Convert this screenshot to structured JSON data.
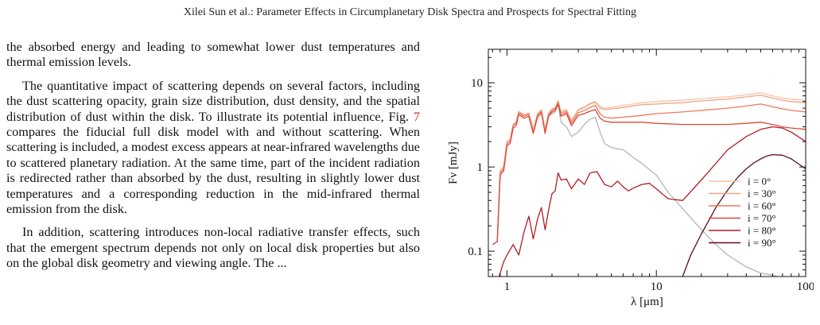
{
  "header": {
    "running_title": "Xilei Sun et al.: Parameter Effects in Circumplanetary Disk Spectra and Prospects for Spectral Fitting"
  },
  "body_text": {
    "para1": "the absorbed energy and leading to somewhat lower dust temperatures and thermal emission levels.",
    "para2_before_ref": "The quantitative impact of scattering depends on several factors, including the dust scattering opacity, grain size distribution, dust density, and the spatial distribution of dust within the disk. To illustrate its potential influence, Fig. ",
    "para2_ref": "7",
    "para2_after_ref": " compares the fiducial full disk model with and without scattering. When scattering is included, a modest excess appears at near-infrared wavelengths due to scattered planetary radiation. At the same time, part of the incident radiation is redirected rather than absorbed by the dust, resulting in slightly lower dust temperatures and a corresponding reduction in the mid-infrared thermal emission from the disk.",
    "para3": "In addition, scattering introduces non-local radiative transfer effects, such that the emergent spectrum depends not only on local disk properties but also on the global disk geometry and viewing angle. The ..."
  },
  "chart_data": {
    "type": "line",
    "xlabel": "λ [μm]",
    "ylabel": "Fν [mJy]",
    "xscale": "log",
    "yscale": "log",
    "xlim": [
      0.75,
      100
    ],
    "ylim": [
      0.05,
      25
    ],
    "xticks": [
      1,
      10,
      100
    ],
    "xtick_labels": [
      "1",
      "10",
      "100"
    ],
    "yticks": [
      0.1,
      1,
      10
    ],
    "ytick_labels": [
      "0.1",
      "1",
      "10"
    ],
    "legend_position": "lower right",
    "grid": false,
    "series": [
      {
        "name": "i = 0°",
        "color": "#f7c4a8",
        "x": [
          0.8,
          0.86,
          0.9,
          0.95,
          1.0,
          1.05,
          1.1,
          1.15,
          1.2,
          1.3,
          1.4,
          1.5,
          1.6,
          1.7,
          1.8,
          1.9,
          2.0,
          2.1,
          2.2,
          2.3,
          2.5,
          2.7,
          3.0,
          3.3,
          3.6,
          3.9,
          4.2,
          4.5,
          5,
          6,
          7,
          8,
          10,
          15,
          20,
          30,
          40,
          50,
          60,
          70,
          80,
          100
        ],
        "y": [
          0.12,
          0.13,
          0.9,
          1.0,
          2.0,
          2.1,
          3.2,
          3.4,
          4.6,
          4.2,
          4.4,
          2.8,
          4.3,
          4.8,
          2.8,
          4.4,
          4.9,
          5.1,
          6.2,
          4.5,
          4.8,
          3.6,
          4.8,
          5.2,
          5.7,
          6.0,
          5.2,
          5.0,
          5.1,
          5.4,
          5.6,
          5.8,
          6.0,
          6.2,
          6.5,
          6.8,
          7.2,
          7.6,
          7.0,
          6.6,
          6.4,
          6.2
        ]
      },
      {
        "name": "i = 30°",
        "color": "#f2a388",
        "x": [
          0.8,
          0.86,
          0.9,
          0.95,
          1.0,
          1.05,
          1.1,
          1.15,
          1.2,
          1.3,
          1.4,
          1.5,
          1.6,
          1.7,
          1.8,
          1.9,
          2.0,
          2.1,
          2.2,
          2.3,
          2.5,
          2.7,
          3.0,
          3.3,
          3.6,
          3.9,
          4.2,
          4.5,
          5,
          6,
          7,
          8,
          10,
          15,
          20,
          30,
          40,
          50,
          60,
          70,
          80,
          100
        ],
        "y": [
          0.12,
          0.13,
          0.9,
          1.0,
          2.0,
          2.1,
          3.2,
          3.4,
          4.5,
          4.1,
          4.3,
          2.7,
          4.2,
          4.7,
          2.7,
          4.3,
          4.8,
          5.0,
          6.0,
          4.4,
          4.7,
          3.5,
          4.7,
          5.1,
          5.6,
          5.9,
          5.0,
          4.8,
          4.9,
          5.1,
          5.3,
          5.5,
          5.6,
          5.8,
          6.1,
          6.4,
          6.8,
          7.1,
          6.6,
          6.2,
          6.0,
          5.8
        ]
      },
      {
        "name": "i = 60°",
        "color": "#ea7a5c",
        "x": [
          0.8,
          0.86,
          0.9,
          0.95,
          1.0,
          1.05,
          1.1,
          1.15,
          1.2,
          1.3,
          1.4,
          1.5,
          1.6,
          1.7,
          1.8,
          1.9,
          2.0,
          2.1,
          2.2,
          2.3,
          2.5,
          2.7,
          3.0,
          3.3,
          3.6,
          3.9,
          4.2,
          4.5,
          5,
          6,
          7,
          8,
          10,
          15,
          20,
          30,
          40,
          50,
          60,
          70,
          80,
          100
        ],
        "y": [
          0.12,
          0.13,
          0.85,
          0.95,
          1.9,
          2.0,
          3.1,
          3.3,
          4.4,
          4.0,
          4.2,
          2.6,
          4.1,
          4.6,
          2.6,
          4.2,
          4.7,
          4.9,
          5.8,
          4.2,
          4.5,
          3.3,
          4.4,
          4.7,
          5.1,
          5.4,
          4.3,
          3.9,
          3.8,
          3.9,
          4.0,
          4.1,
          4.3,
          4.5,
          4.7,
          5.0,
          5.3,
          5.6,
          5.2,
          4.9,
          4.7,
          4.5
        ]
      },
      {
        "name": "i = 70°",
        "color": "#dc4a3a",
        "x": [
          0.8,
          0.86,
          0.9,
          0.95,
          1.0,
          1.05,
          1.1,
          1.15,
          1.2,
          1.3,
          1.4,
          1.5,
          1.6,
          1.7,
          1.8,
          1.9,
          2.0,
          2.1,
          2.2,
          2.3,
          2.5,
          2.7,
          3.0,
          3.3,
          3.6,
          3.9,
          4.2,
          4.5,
          5,
          6,
          7,
          8,
          10,
          15,
          20,
          30,
          40,
          50,
          60,
          70,
          80,
          100
        ],
        "y": [
          0.12,
          0.13,
          0.8,
          0.9,
          1.8,
          1.9,
          2.9,
          3.1,
          4.2,
          3.8,
          4.0,
          2.5,
          3.9,
          4.4,
          2.5,
          4.0,
          4.5,
          4.7,
          5.6,
          4.0,
          4.3,
          3.1,
          4.1,
          4.3,
          4.6,
          4.8,
          3.8,
          3.5,
          3.4,
          3.4,
          3.4,
          3.4,
          3.3,
          3.2,
          3.2,
          3.2,
          3.3,
          3.4,
          3.2,
          3.0,
          2.9,
          2.8
        ]
      },
      {
        "name": "i = 80°",
        "color": "#b01e24",
        "x": [
          0.75,
          0.8,
          0.85,
          0.9,
          0.95,
          1.0,
          1.1,
          1.2,
          1.3,
          1.4,
          1.5,
          1.6,
          1.7,
          1.8,
          1.9,
          2.0,
          2.1,
          2.2,
          2.3,
          2.5,
          2.7,
          3.0,
          3.3,
          3.6,
          4.0,
          4.5,
          5,
          5.5,
          6,
          6.5,
          7,
          8,
          9,
          10,
          12,
          15,
          20,
          25,
          30,
          40,
          50,
          60,
          70,
          80,
          100
        ],
        "y": [
          0.035,
          0.05,
          0.04,
          0.055,
          0.075,
          0.09,
          0.12,
          0.09,
          0.17,
          0.26,
          0.14,
          0.24,
          0.33,
          0.18,
          0.31,
          0.48,
          0.52,
          0.85,
          0.7,
          0.72,
          0.55,
          0.72,
          0.62,
          0.85,
          0.88,
          0.62,
          0.58,
          0.68,
          0.58,
          0.52,
          0.56,
          0.62,
          0.64,
          0.55,
          0.42,
          0.4,
          0.7,
          1.1,
          1.6,
          2.3,
          2.8,
          3.0,
          2.9,
          2.6,
          2.0
        ]
      },
      {
        "name": "i = 90°",
        "color": "#5e0d19",
        "x": [
          13.5,
          15,
          17,
          20,
          23,
          25,
          30,
          35,
          40,
          45,
          50,
          55,
          60,
          70,
          80,
          100
        ],
        "y": [
          0.03,
          0.05,
          0.09,
          0.16,
          0.25,
          0.33,
          0.53,
          0.75,
          0.95,
          1.12,
          1.25,
          1.35,
          1.4,
          1.38,
          1.25,
          0.95
        ]
      },
      {
        "name": "",
        "color": "#b6b6b6",
        "x": [
          0.8,
          0.86,
          0.9,
          0.95,
          1.0,
          1.05,
          1.1,
          1.15,
          1.2,
          1.3,
          1.4,
          1.5,
          1.6,
          1.7,
          1.8,
          1.9,
          2.0,
          2.1,
          2.2,
          2.3,
          2.5,
          2.7,
          3.0,
          3.3,
          3.6,
          3.9,
          4.2,
          4.5,
          5,
          6,
          7,
          8,
          10,
          12,
          15,
          20,
          25,
          30,
          40,
          50,
          60,
          70,
          80
        ],
        "y": [
          0.12,
          0.13,
          0.9,
          1.0,
          2.0,
          2.1,
          3.2,
          3.4,
          4.5,
          4.1,
          4.3,
          2.7,
          4.2,
          4.6,
          2.6,
          4.0,
          4.3,
          4.5,
          5.5,
          3.4,
          3.0,
          2.3,
          2.6,
          3.2,
          3.7,
          3.9,
          2.6,
          1.9,
          1.7,
          1.6,
          1.3,
          1.1,
          0.8,
          0.5,
          0.32,
          0.18,
          0.12,
          0.09,
          0.065,
          0.055,
          0.052,
          0.048,
          0.045
        ]
      }
    ]
  }
}
